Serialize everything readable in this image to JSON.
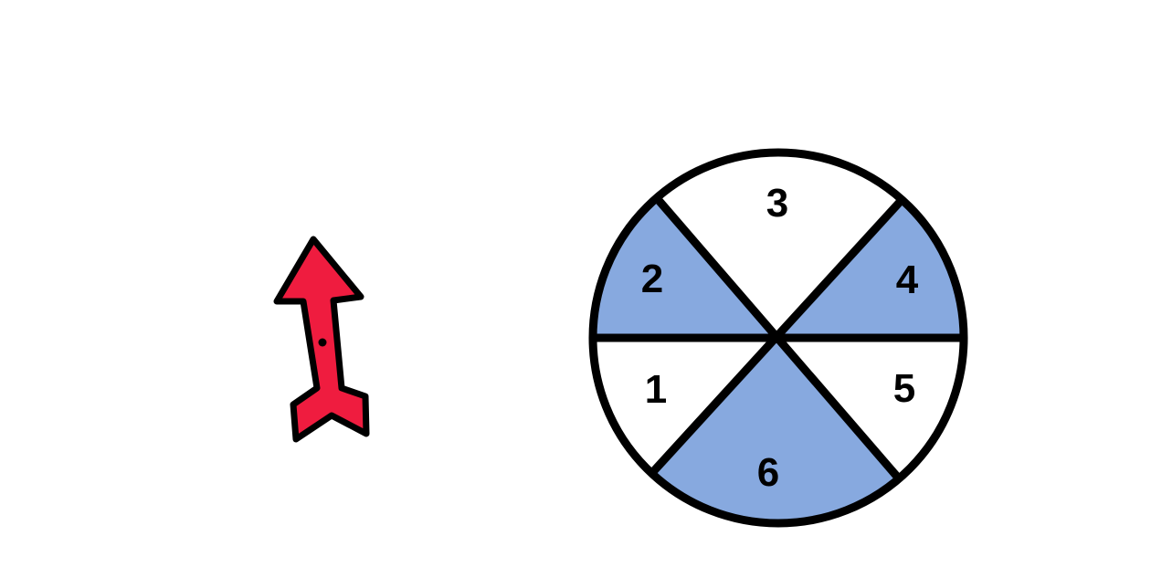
{
  "colors": {
    "background": "#ffffff",
    "outline": "#000000",
    "shaded_sector": "#87a9df",
    "plain_sector": "#ffffff",
    "arrow_fill": "#ef1c3f"
  },
  "arrow": {
    "icon": "red-arrow-icon",
    "pointing": "up"
  },
  "spinner": {
    "sectors": [
      {
        "number": "1",
        "shaded": false
      },
      {
        "number": "2",
        "shaded": true
      },
      {
        "number": "3",
        "shaded": false
      },
      {
        "number": "4",
        "shaded": true
      },
      {
        "number": "5",
        "shaded": false
      },
      {
        "number": "6",
        "shaded": true
      }
    ]
  }
}
